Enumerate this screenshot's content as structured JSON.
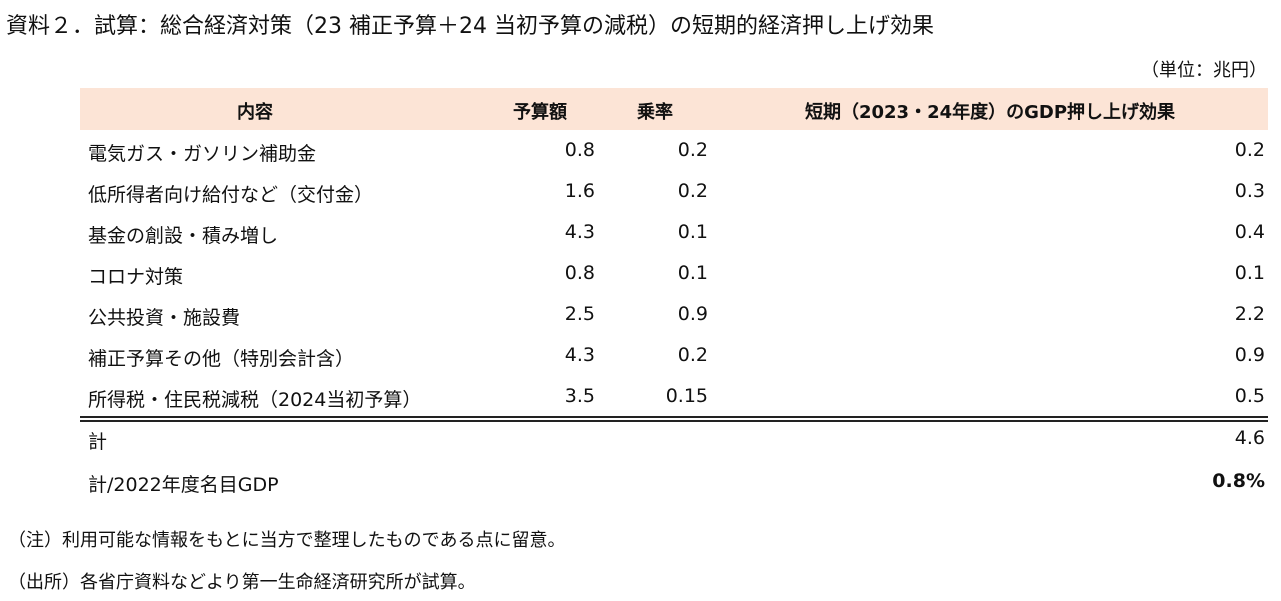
{
  "title": "資料２．試算：総合経済対策（23 補正予算＋24 当初予算の減税）の短期的経済押し上げ効果",
  "unit": "（単位：兆円）",
  "table": {
    "header": [
      "内容",
      "予算額",
      "乗率",
      "短期（2023・24年度）のGDP押し上げ効果"
    ],
    "rows": [
      [
        "電気ガス・ガソリン補助金",
        "0.8",
        "0.2",
        "0.2"
      ],
      [
        "低所得者向け給付など（交付金）",
        "1.6",
        "0.2",
        "0.3"
      ],
      [
        "基金の創設・積み増し",
        "4.3",
        "0.1",
        "0.4"
      ],
      [
        "コロナ対策",
        "0.8",
        "0.1",
        "0.1"
      ],
      [
        "公共投資・施設費",
        "2.5",
        "0.9",
        "2.2"
      ],
      [
        "補正予算その他（特別会計含）",
        "4.3",
        "0.2",
        "0.9"
      ],
      [
        "所得税・住民税減税（2024当初予算）",
        "3.5",
        "0.15",
        "0.5"
      ]
    ],
    "totals": [
      [
        "計",
        "4.6"
      ],
      [
        "計/2022年度名目GDP",
        "0.8%"
      ]
    ]
  },
  "notes": [
    "（注）利用可能な情報をもとに当方で整理したものである点に留意。",
    "（出所）各省庁資料などより第一生命経済研究所が試算。"
  ]
}
